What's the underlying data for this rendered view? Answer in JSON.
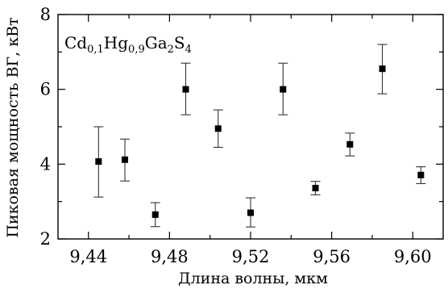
{
  "chart_data": {
    "type": "scatter",
    "xlabel": "Длина волны, мкм",
    "ylabel": "Пиковая мощность ВГ, кВт",
    "annotation": {
      "parts": [
        {
          "t": "Cd",
          "sub": false
        },
        {
          "t": "0,1",
          "sub": true
        },
        {
          "t": "Hg",
          "sub": false
        },
        {
          "t": "0,9",
          "sub": true
        },
        {
          "t": "Ga",
          "sub": false
        },
        {
          "t": "2",
          "sub": true
        },
        {
          "t": "S",
          "sub": false
        },
        {
          "t": "4",
          "sub": true
        }
      ]
    },
    "xlim": [
      9.425,
      9.615
    ],
    "ylim": [
      2,
      8
    ],
    "xticks": [
      9.44,
      9.48,
      9.52,
      9.56,
      9.6
    ],
    "xtick_labels": [
      "9,44",
      "9,48",
      "9,52",
      "9,56",
      "9,60"
    ],
    "xminor": [
      9.46,
      9.5,
      9.54,
      9.58
    ],
    "yticks": [
      2,
      4,
      6,
      8
    ],
    "ytick_labels": [
      "2",
      "4",
      "6",
      "8"
    ],
    "yminor": [
      3,
      5,
      7
    ],
    "grid": false,
    "points": [
      {
        "x": 9.445,
        "y": 4.07,
        "err_low": 3.12,
        "err_high": 5.0
      },
      {
        "x": 9.458,
        "y": 4.12,
        "err_low": 3.55,
        "err_high": 4.67
      },
      {
        "x": 9.473,
        "y": 2.65,
        "err_low": 2.33,
        "err_high": 2.97
      },
      {
        "x": 9.488,
        "y": 6.0,
        "err_low": 5.32,
        "err_high": 6.7
      },
      {
        "x": 9.504,
        "y": 4.95,
        "err_low": 4.45,
        "err_high": 5.45
      },
      {
        "x": 9.52,
        "y": 2.7,
        "err_low": 2.32,
        "err_high": 3.1
      },
      {
        "x": 9.536,
        "y": 6.0,
        "err_low": 5.32,
        "err_high": 6.7
      },
      {
        "x": 9.552,
        "y": 3.36,
        "err_low": 3.18,
        "err_high": 3.54
      },
      {
        "x": 9.569,
        "y": 4.53,
        "err_low": 4.22,
        "err_high": 4.83
      },
      {
        "x": 9.585,
        "y": 6.55,
        "err_low": 5.88,
        "err_high": 7.2
      },
      {
        "x": 9.604,
        "y": 3.71,
        "err_low": 3.48,
        "err_high": 3.93
      }
    ]
  }
}
